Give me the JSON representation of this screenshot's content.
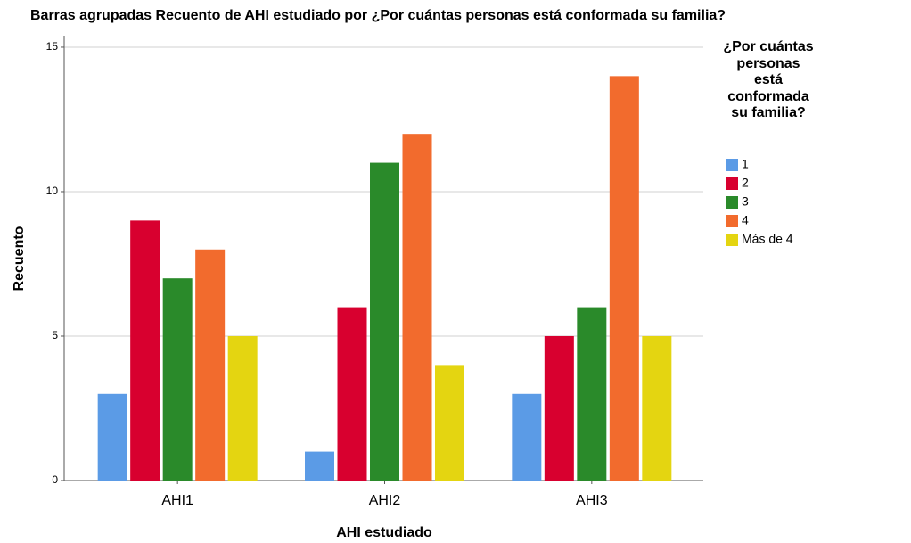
{
  "chart_data": {
    "type": "bar",
    "title": "Barras agrupadas Recuento de AHI estudiado por ¿Por cuántas personas está conformada su familia?",
    "x_label": "AHI estudiado",
    "y_label": "Recuento",
    "legend_title": "¿Por cuántas personas está conformada su familia?",
    "categories": [
      "AHI1",
      "AHI2",
      "AHI3"
    ],
    "series": [
      {
        "name": "1",
        "color": "#5b9be6",
        "values": [
          3,
          1,
          3
        ]
      },
      {
        "name": "2",
        "color": "#d8002f",
        "values": [
          9,
          6,
          5
        ]
      },
      {
        "name": "3",
        "color": "#2a8a2a",
        "values": [
          7,
          11,
          6
        ]
      },
      {
        "name": "4",
        "color": "#f26b2d",
        "values": [
          8,
          12,
          14
        ]
      },
      {
        "name": "Más de 4",
        "color": "#e4d511",
        "values": [
          5,
          4,
          5
        ]
      }
    ],
    "ylim": [
      0,
      15.4
    ],
    "yticks": [
      0,
      5,
      10,
      15
    ],
    "grid": true
  }
}
